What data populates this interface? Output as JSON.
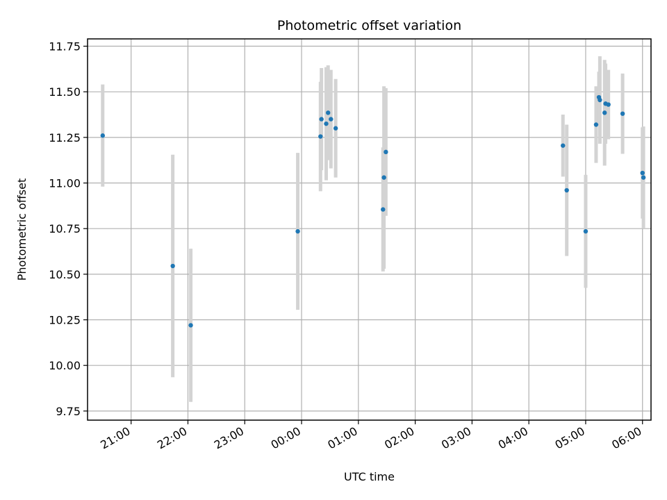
{
  "chart_data": {
    "type": "scatter",
    "title": "Photometric offset variation",
    "xlabel": "UTC time",
    "ylabel": "Photometric offset",
    "xlim_minutes_since_first_tick": [
      -46,
      549
    ],
    "ylim": [
      9.7,
      11.79
    ],
    "grid": true,
    "x_ticks": [
      "21:00",
      "22:00",
      "23:00",
      "00:00",
      "01:00",
      "02:00",
      "03:00",
      "04:00",
      "05:00",
      "06:00"
    ],
    "y_ticks": [
      "9.75",
      "10.00",
      "10.25",
      "10.50",
      "10.75",
      "11.00",
      "11.25",
      "11.50",
      "11.75"
    ],
    "point_color": "#1f77b4",
    "errorbar_color": "#d3d3d3",
    "x_axis_start": "20:00",
    "points": [
      {
        "t": "20:30",
        "y": 11.26,
        "err": 0.28
      },
      {
        "t": "21:44",
        "y": 10.545,
        "err": 0.61
      },
      {
        "t": "22:03",
        "y": 10.22,
        "err": 0.42
      },
      {
        "t": "23:56",
        "y": 10.735,
        "err": 0.43
      },
      {
        "t": "00:20",
        "y": 11.255,
        "err": 0.3
      },
      {
        "t": "00:21",
        "y": 11.35,
        "err": 0.28
      },
      {
        "t": "00:26",
        "y": 11.325,
        "err": 0.31
      },
      {
        "t": "00:28",
        "y": 11.385,
        "err": 0.26
      },
      {
        "t": "00:31",
        "y": 11.35,
        "err": 0.27
      },
      {
        "t": "00:36",
        "y": 11.3,
        "err": 0.27
      },
      {
        "t": "01:26",
        "y": 10.855,
        "err": 0.34
      },
      {
        "t": "01:27",
        "y": 11.03,
        "err": 0.5
      },
      {
        "t": "01:29",
        "y": 11.17,
        "err": 0.35
      },
      {
        "t": "04:36",
        "y": 11.205,
        "err": 0.17
      },
      {
        "t": "04:40",
        "y": 10.96,
        "err": 0.36
      },
      {
        "t": "05:00",
        "y": 10.735,
        "err": 0.31
      },
      {
        "t": "05:11",
        "y": 11.32,
        "err": 0.21
      },
      {
        "t": "05:14",
        "y": 11.47,
        "err": 0.14
      },
      {
        "t": "05:15",
        "y": 11.455,
        "err": 0.24
      },
      {
        "t": "05:20",
        "y": 11.385,
        "err": 0.29
      },
      {
        "t": "05:21",
        "y": 11.435,
        "err": 0.22
      },
      {
        "t": "05:24",
        "y": 11.43,
        "err": 0.19
      },
      {
        "t": "05:39",
        "y": 11.38,
        "err": 0.22
      },
      {
        "t": "06:00",
        "y": 11.055,
        "err": 0.25
      },
      {
        "t": "06:01",
        "y": 11.03,
        "err": 0.28
      }
    ]
  }
}
